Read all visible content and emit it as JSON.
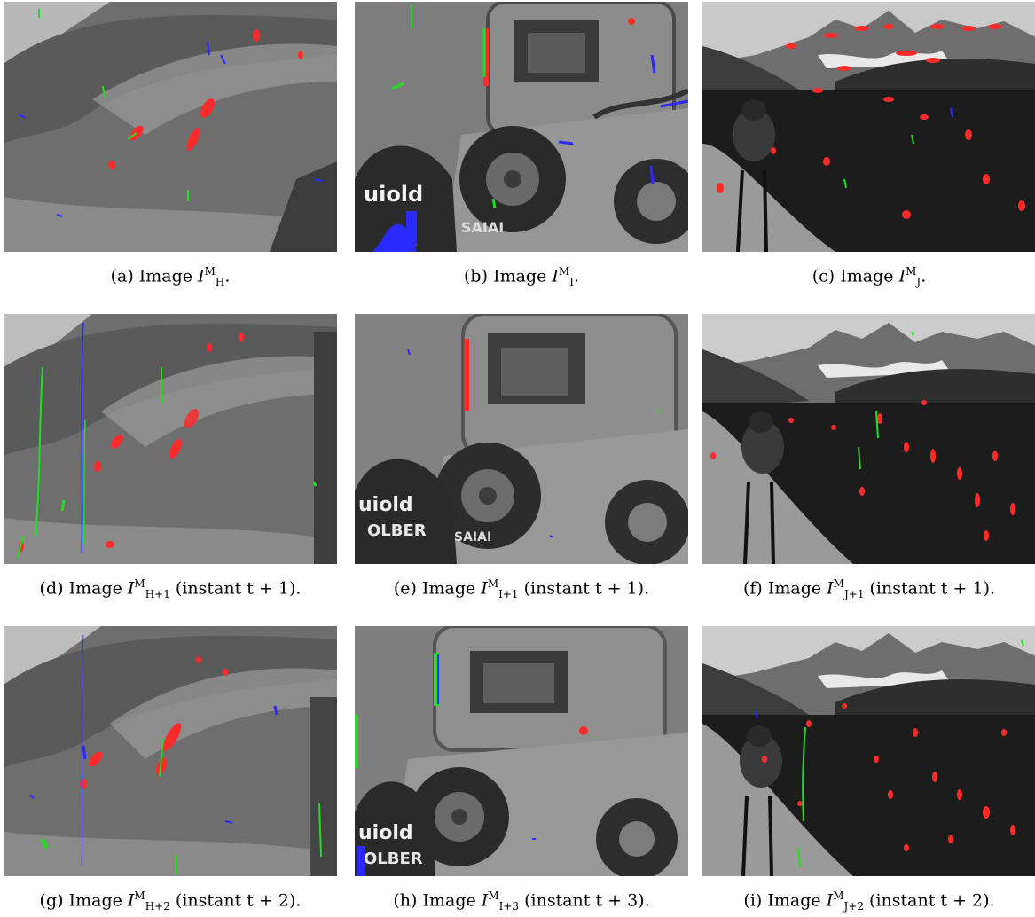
{
  "figure": {
    "panels": [
      {
        "id": "a",
        "scene": "hillside",
        "caption": {
          "label": "(a)",
          "text": "Image",
          "symbol": "I",
          "sub": "H",
          "sup": "M",
          "suffix": "."
        }
      },
      {
        "id": "b",
        "scene": "car",
        "caption": {
          "label": "(b)",
          "text": "Image",
          "symbol": "I",
          "sub": "I",
          "sup": "M",
          "suffix": "."
        }
      },
      {
        "id": "c",
        "scene": "cyclists",
        "caption": {
          "label": "(c)",
          "text": "Image",
          "symbol": "I",
          "sub": "J",
          "sup": "M",
          "suffix": "."
        }
      },
      {
        "id": "d",
        "scene": "hillside",
        "caption": {
          "label": "(d)",
          "text": "Image",
          "symbol": "I",
          "sub": "H+1",
          "sup": "M",
          "suffix": "(instant t + 1)."
        }
      },
      {
        "id": "e",
        "scene": "car",
        "caption": {
          "label": "(e)",
          "text": "Image",
          "symbol": "I",
          "sub": "I+1",
          "sup": "M",
          "suffix": "(instant t + 1)."
        }
      },
      {
        "id": "f",
        "scene": "cyclists",
        "caption": {
          "label": "(f)",
          "text": "Image",
          "symbol": "I",
          "sub": "J+1",
          "sup": "M",
          "suffix": "(instant t + 1)."
        }
      },
      {
        "id": "g",
        "scene": "hillside",
        "caption": {
          "label": "(g)",
          "text": "Image",
          "symbol": "I",
          "sub": "H+2",
          "sup": "M",
          "suffix": "(instant t + 2)."
        }
      },
      {
        "id": "h",
        "scene": "car",
        "caption": {
          "label": "(h)",
          "text": "Image",
          "symbol": "I",
          "sub": "I+3",
          "sup": "M",
          "suffix": "(instant t + 3)."
        }
      },
      {
        "id": "i",
        "scene": "cyclists",
        "caption": {
          "label": "(i)",
          "text": "Image",
          "symbol": "I",
          "sub": "J+2",
          "sup": "M",
          "suffix": "(instant t + 2)."
        }
      }
    ],
    "overlay_colors": {
      "red": "#ff2a2a",
      "green": "#22dd22",
      "blue": "#2a2aff"
    },
    "car_lettering": {
      "top": "uiold",
      "bottom": "OLBER",
      "plate": "SAIAI"
    }
  }
}
